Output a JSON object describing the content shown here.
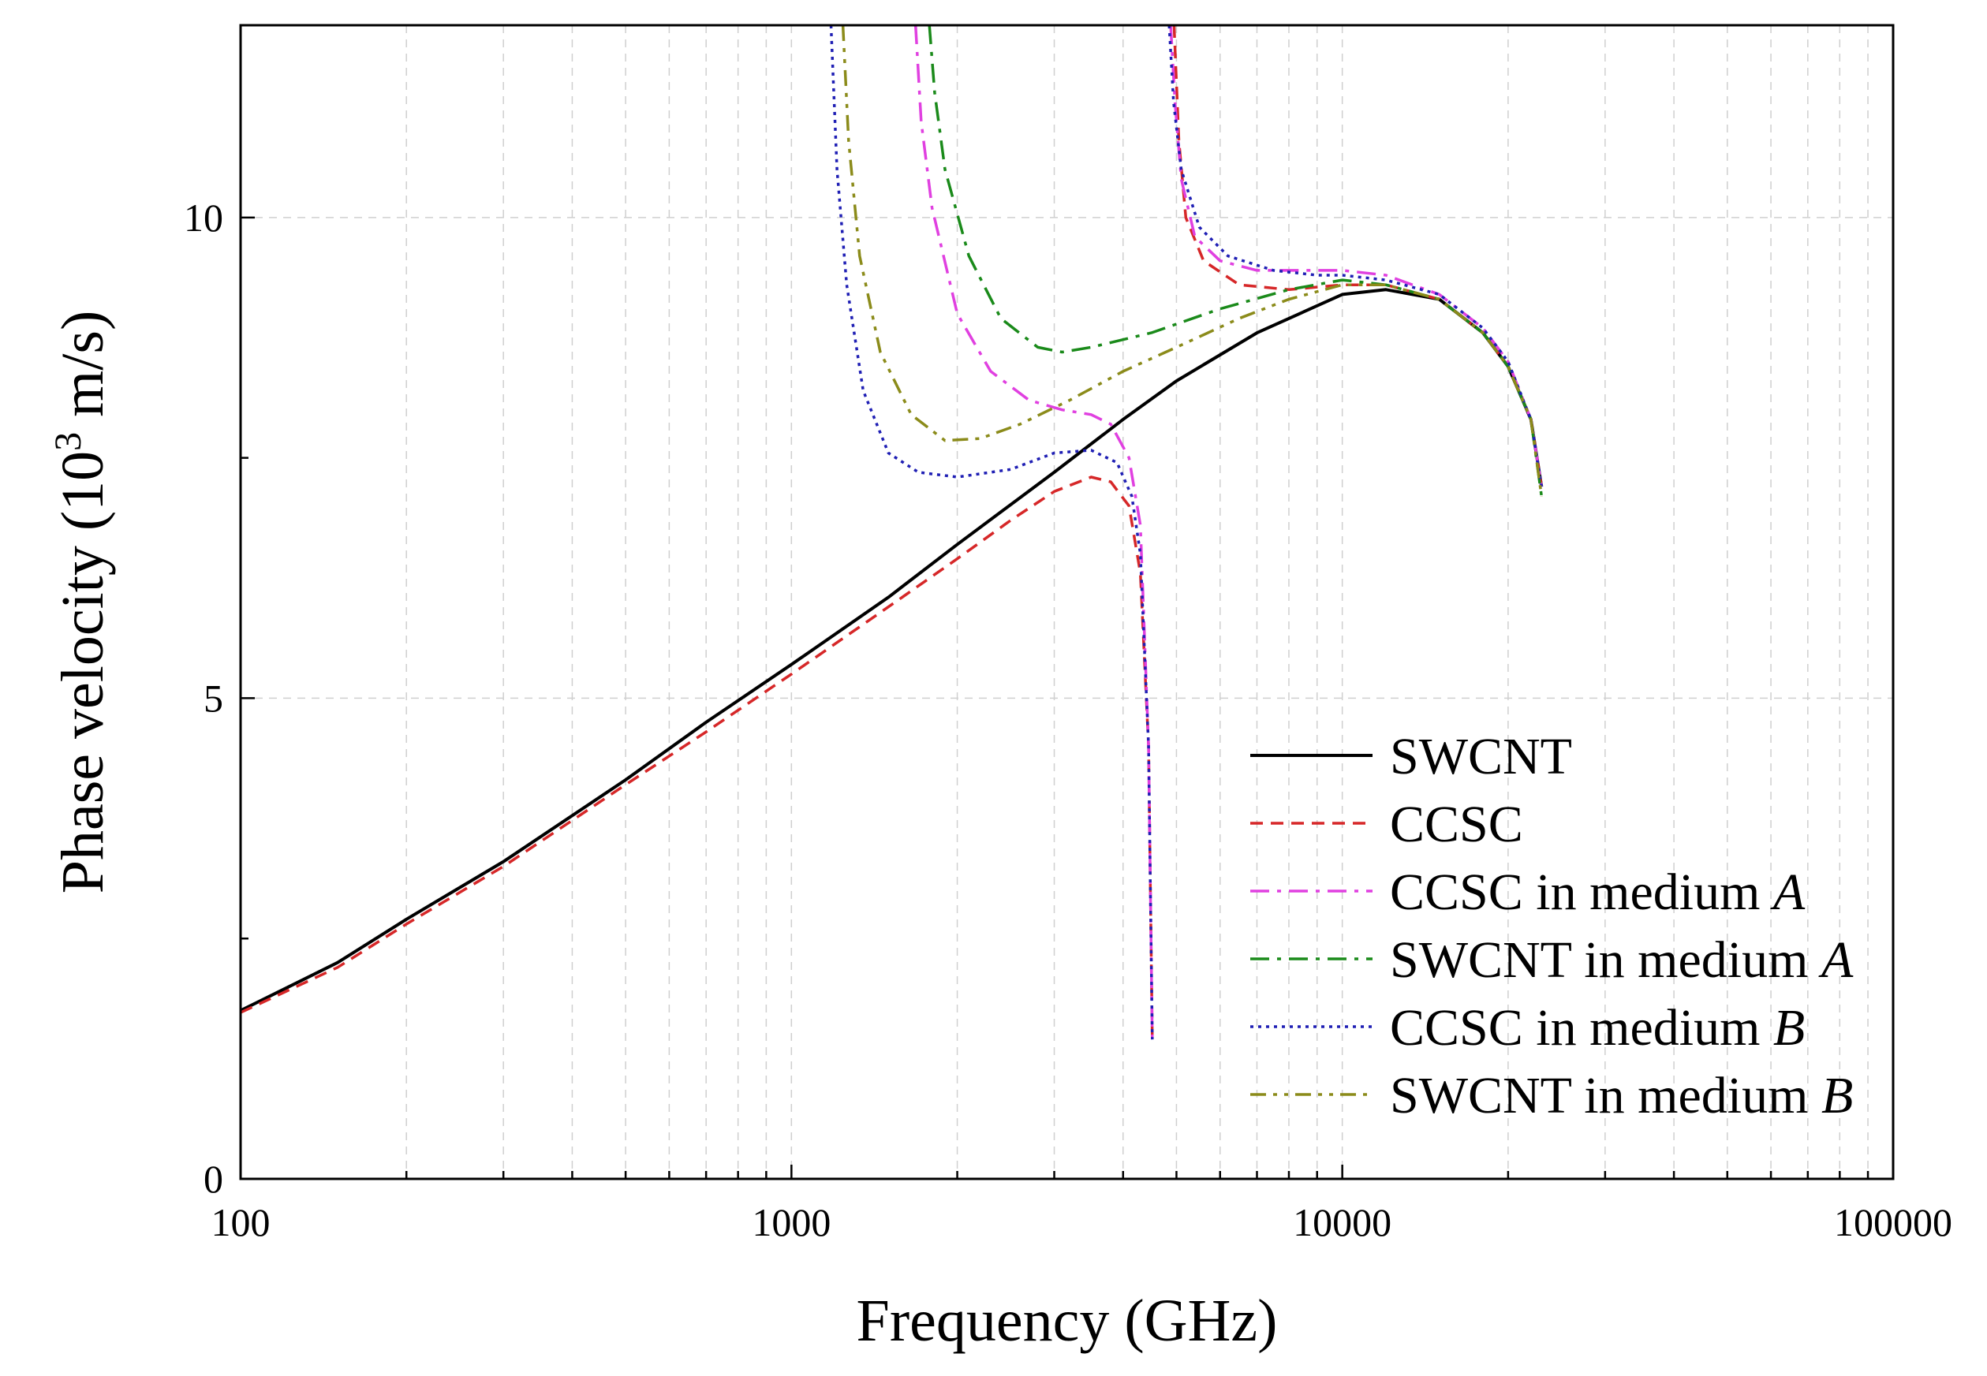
{
  "chart_data": {
    "type": "line",
    "title": "",
    "xlabel": "Frequency (GHz)",
    "ylabel": {
      "prefix": "Phase velocity (10",
      "superscript": "3",
      "suffix": " m/s)"
    },
    "xscale": "log",
    "xlim": [
      100,
      100000
    ],
    "ylim": [
      0,
      12
    ],
    "x_ticks": [
      100,
      1000,
      10000,
      100000
    ],
    "x_tick_labels": [
      "100",
      "1000",
      "10000",
      "100000"
    ],
    "y_ticks": [
      0,
      5,
      10
    ],
    "y_tick_labels": [
      "0",
      "5",
      "10"
    ],
    "grid": true,
    "legend_position": "bottom-right",
    "series": [
      {
        "name": "SWCNT",
        "color": "#000000",
        "dash": "solid",
        "branches": [
          [
            [
              100,
              1.75
            ],
            [
              150,
              2.25
            ],
            [
              200,
              2.7
            ],
            [
              300,
              3.3
            ],
            [
              500,
              4.15
            ],
            [
              700,
              4.75
            ],
            [
              1000,
              5.35
            ],
            [
              1500,
              6.05
            ],
            [
              2000,
              6.6
            ],
            [
              3000,
              7.35
            ],
            [
              4000,
              7.9
            ],
            [
              5000,
              8.3
            ],
            [
              7000,
              8.8
            ],
            [
              10000,
              9.2
            ],
            [
              12000,
              9.25
            ],
            [
              15000,
              9.15
            ],
            [
              18000,
              8.8
            ],
            [
              20000,
              8.45
            ],
            [
              22000,
              7.9
            ],
            [
              23000,
              7.2
            ]
          ]
        ]
      },
      {
        "name": "CCSC",
        "color": "#d62728",
        "dash": "dashed",
        "branches": [
          [
            [
              100,
              1.73
            ],
            [
              150,
              2.2
            ],
            [
              200,
              2.65
            ],
            [
              300,
              3.25
            ],
            [
              500,
              4.1
            ],
            [
              700,
              4.65
            ],
            [
              1000,
              5.25
            ],
            [
              1500,
              5.95
            ],
            [
              2000,
              6.45
            ],
            [
              2500,
              6.85
            ],
            [
              3000,
              7.15
            ],
            [
              3500,
              7.3
            ],
            [
              3800,
              7.25
            ],
            [
              4100,
              7.0
            ],
            [
              4300,
              6.3
            ],
            [
              4450,
              4.5
            ],
            [
              4520,
              1.45
            ]
          ],
          [
            [
              4950,
              12
            ],
            [
              5050,
              10.8
            ],
            [
              5200,
              10.0
            ],
            [
              5600,
              9.55
            ],
            [
              6500,
              9.3
            ],
            [
              8000,
              9.25
            ],
            [
              10000,
              9.3
            ],
            [
              12000,
              9.3
            ],
            [
              15000,
              9.15
            ],
            [
              18000,
              8.8
            ],
            [
              20000,
              8.45
            ],
            [
              22000,
              7.9
            ],
            [
              23000,
              7.2
            ]
          ]
        ]
      },
      {
        "name": "CCSC in medium A",
        "color": "#e040e0",
        "dash": "dashdot",
        "branches": [
          [
            [
              1680,
              12
            ],
            [
              1720,
              11.0
            ],
            [
              1800,
              10.1
            ],
            [
              2000,
              9.0
            ],
            [
              2300,
              8.4
            ],
            [
              2700,
              8.1
            ],
            [
              3100,
              8.0
            ],
            [
              3500,
              7.95
            ],
            [
              3800,
              7.85
            ],
            [
              4100,
              7.5
            ],
            [
              4300,
              6.8
            ],
            [
              4450,
              4.5
            ],
            [
              4520,
              1.45
            ]
          ],
          [
            [
              4880,
              12
            ],
            [
              4970,
              11.2
            ],
            [
              5100,
              10.4
            ],
            [
              5400,
              9.8
            ],
            [
              6000,
              9.55
            ],
            [
              7000,
              9.45
            ],
            [
              9000,
              9.45
            ],
            [
              10000,
              9.45
            ],
            [
              12000,
              9.4
            ],
            [
              15000,
              9.2
            ],
            [
              18000,
              8.85
            ],
            [
              20000,
              8.5
            ],
            [
              22000,
              7.9
            ],
            [
              23000,
              7.2
            ]
          ]
        ]
      },
      {
        "name": "SWCNT in medium A",
        "color": "#1a8a1a",
        "dash": "dashdot",
        "branches": [
          [
            [
              1780,
              12
            ],
            [
              1820,
              11.3
            ],
            [
              1900,
              10.5
            ],
            [
              2100,
              9.6
            ],
            [
              2400,
              8.95
            ],
            [
              2800,
              8.65
            ],
            [
              3100,
              8.6
            ],
            [
              3500,
              8.65
            ],
            [
              4500,
              8.8
            ],
            [
              6000,
              9.05
            ],
            [
              8000,
              9.25
            ],
            [
              10000,
              9.35
            ],
            [
              12000,
              9.3
            ],
            [
              15000,
              9.15
            ],
            [
              18000,
              8.8
            ],
            [
              20000,
              8.45
            ],
            [
              22000,
              7.9
            ],
            [
              23000,
              7.1
            ]
          ]
        ]
      },
      {
        "name": "CCSC in medium B",
        "color": "#1f1fb4",
        "dash": "dotted",
        "branches": [
          [
            [
              1180,
              12
            ],
            [
              1210,
              10.5
            ],
            [
              1260,
              9.3
            ],
            [
              1350,
              8.2
            ],
            [
              1500,
              7.55
            ],
            [
              1700,
              7.35
            ],
            [
              2000,
              7.3
            ],
            [
              2500,
              7.38
            ],
            [
              3000,
              7.55
            ],
            [
              3500,
              7.58
            ],
            [
              3900,
              7.45
            ],
            [
              4150,
              7.1
            ],
            [
              4300,
              6.5
            ],
            [
              4450,
              4.5
            ],
            [
              4520,
              1.45
            ]
          ],
          [
            [
              4850,
              12
            ],
            [
              4940,
              11.2
            ],
            [
              5100,
              10.5
            ],
            [
              5500,
              9.9
            ],
            [
              6200,
              9.6
            ],
            [
              7500,
              9.45
            ],
            [
              9000,
              9.4
            ],
            [
              10000,
              9.4
            ],
            [
              12000,
              9.35
            ],
            [
              15000,
              9.2
            ],
            [
              18000,
              8.85
            ],
            [
              20000,
              8.5
            ],
            [
              22000,
              7.9
            ],
            [
              23000,
              7.2
            ]
          ]
        ]
      },
      {
        "name": "SWCNT in medium B",
        "color": "#8b8b1a",
        "dash": "dashdotdot",
        "branches": [
          [
            [
              1240,
              12
            ],
            [
              1270,
              10.8
            ],
            [
              1330,
              9.6
            ],
            [
              1450,
              8.6
            ],
            [
              1650,
              7.95
            ],
            [
              1900,
              7.68
            ],
            [
              2200,
              7.7
            ],
            [
              2600,
              7.85
            ],
            [
              3200,
              8.1
            ],
            [
              4000,
              8.4
            ],
            [
              5000,
              8.65
            ],
            [
              6500,
              8.95
            ],
            [
              8000,
              9.15
            ],
            [
              10000,
              9.3
            ],
            [
              12000,
              9.3
            ],
            [
              15000,
              9.15
            ],
            [
              18000,
              8.8
            ],
            [
              20000,
              8.45
            ],
            [
              22000,
              7.9
            ],
            [
              23000,
              7.1
            ]
          ]
        ]
      }
    ]
  }
}
